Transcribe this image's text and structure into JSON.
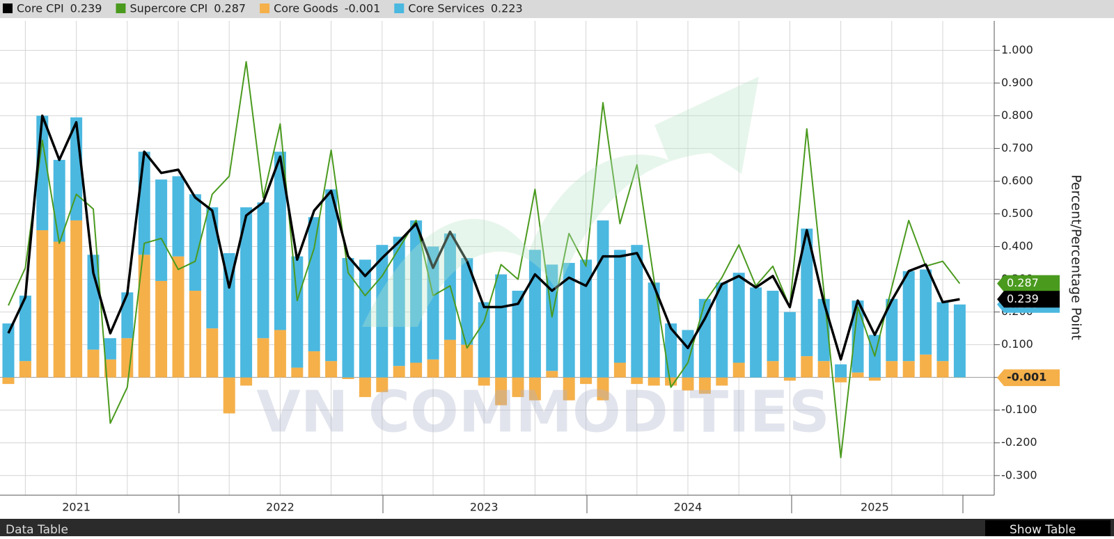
{
  "chart_data": {
    "type": "combo",
    "y_axis_label": "Percent/Percentage Point",
    "watermark": "VN COMMODITIES",
    "categories": [
      null,
      null,
      null,
      null,
      "2021",
      null,
      null,
      null,
      null,
      null,
      null,
      null,
      null,
      null,
      null,
      null,
      "2022",
      null,
      null,
      null,
      null,
      null,
      null,
      null,
      null,
      null,
      null,
      null,
      "2023",
      null,
      null,
      null,
      null,
      null,
      null,
      null,
      null,
      null,
      null,
      null,
      "2024",
      null,
      null,
      null,
      null,
      null,
      null,
      null,
      null,
      null,
      null,
      "2025",
      null,
      null,
      null,
      null,
      null
    ],
    "ylim": [
      -0.36,
      1.09
    ],
    "yticks": [
      {
        "value": 1.0,
        "label": "1.000"
      },
      {
        "value": 0.9,
        "label": "0.900"
      },
      {
        "value": 0.8,
        "label": "0.800"
      },
      {
        "value": 0.7,
        "label": "0.700"
      },
      {
        "value": 0.6,
        "label": "0.600"
      },
      {
        "value": 0.5,
        "label": "0.500"
      },
      {
        "value": 0.4,
        "label": "0.400"
      },
      {
        "value": 0.3,
        "label": "0.300"
      },
      {
        "value": 0.2,
        "label": "0.200"
      },
      {
        "value": 0.1,
        "label": "0.100"
      },
      {
        "value": 0,
        "label": "0"
      },
      {
        "value": -0.1,
        "label": "-0.100"
      },
      {
        "value": -0.2,
        "label": "-0.200"
      },
      {
        "value": -0.3,
        "label": "-0.300"
      }
    ],
    "grid": true,
    "series": [
      {
        "name": "Core CPI",
        "color": "#000000",
        "type": "line",
        "values": [
          0.135,
          0.245,
          0.8,
          0.665,
          0.78,
          0.32,
          0.135,
          0.255,
          0.69,
          0.625,
          0.635,
          0.55,
          0.51,
          0.275,
          0.495,
          0.535,
          0.675,
          0.36,
          0.51,
          0.57,
          0.37,
          0.31,
          0.365,
          0.415,
          0.47,
          0.335,
          0.445,
          0.355,
          0.215,
          0.215,
          0.225,
          0.315,
          0.265,
          0.305,
          0.28,
          0.37,
          0.37,
          0.38,
          0.28,
          0.15,
          0.09,
          0.18,
          0.285,
          0.31,
          0.275,
          0.31,
          0.215,
          0.45,
          0.23,
          0.055,
          0.235,
          0.13,
          0.235,
          0.325,
          0.345,
          0.23,
          0.239
        ]
      },
      {
        "name": "Supercore CPI",
        "color": "#4a9a1e",
        "type": "line",
        "values": [
          0.22,
          0.335,
          0.725,
          0.41,
          0.56,
          0.515,
          -0.14,
          -0.03,
          0.41,
          0.425,
          0.33,
          0.355,
          0.56,
          0.615,
          0.965,
          0.55,
          0.775,
          0.235,
          0.395,
          0.695,
          0.32,
          0.25,
          0.31,
          0.395,
          0.48,
          0.25,
          0.28,
          0.09,
          0.17,
          0.345,
          0.3,
          0.575,
          0.185,
          0.44,
          0.34,
          0.84,
          0.47,
          0.65,
          0.3,
          -0.03,
          0.045,
          0.23,
          0.305,
          0.405,
          0.28,
          0.34,
          0.215,
          0.76,
          0.265,
          -0.245,
          0.215,
          0.065,
          0.275,
          0.48,
          0.34,
          0.355,
          0.287
        ]
      },
      {
        "name": "Core Goods",
        "color": "#f5b04a",
        "type": "bar",
        "values": [
          -0.02,
          0.05,
          0.45,
          0.415,
          0.48,
          0.085,
          0.055,
          0.12,
          0.375,
          0.295,
          0.37,
          0.265,
          0.15,
          -0.11,
          -0.025,
          0.12,
          0.145,
          0.03,
          0.08,
          0.05,
          -0.005,
          -0.06,
          -0.045,
          0.035,
          0.045,
          0.055,
          0.115,
          0.1,
          -0.025,
          -0.085,
          -0.06,
          -0.07,
          0.02,
          -0.07,
          -0.02,
          -0.07,
          0.045,
          -0.02,
          -0.025,
          -0.025,
          -0.04,
          -0.05,
          -0.025,
          0.045,
          0,
          0.05,
          -0.01,
          0.065,
          0.05,
          -0.015,
          0.015,
          -0.01,
          0.05,
          0.05,
          0.07,
          0.05,
          -0.001
        ]
      },
      {
        "name": "Core Services",
        "color": "#4bb8e0",
        "type": "bar",
        "values": [
          0.165,
          0.2,
          0.35,
          0.25,
          0.315,
          0.29,
          0.065,
          0.14,
          0.315,
          0.31,
          0.245,
          0.295,
          0.37,
          0.38,
          0.52,
          0.415,
          0.545,
          0.34,
          0.41,
          0.525,
          0.365,
          0.36,
          0.405,
          0.395,
          0.435,
          0.345,
          0.325,
          0.265,
          0.23,
          0.315,
          0.265,
          0.39,
          0.325,
          0.35,
          0.36,
          0.48,
          0.345,
          0.405,
          0.29,
          0.165,
          0.145,
          0.24,
          0.29,
          0.275,
          0.275,
          0.215,
          0.2,
          0.39,
          0.19,
          0.04,
          0.22,
          0.13,
          0.19,
          0.275,
          0.26,
          0.18,
          0.223
        ]
      }
    ]
  },
  "footer": {
    "left": "Data Table",
    "button": "Show Table"
  }
}
